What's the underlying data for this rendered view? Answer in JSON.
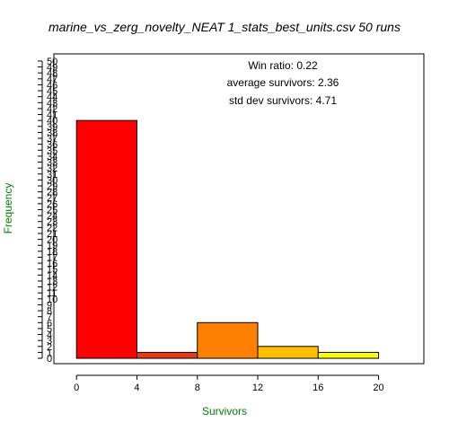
{
  "chart_data": {
    "type": "bar",
    "title": "marine_vs_zerg_novelty_NEAT 1_stats_best_units.csv 50 runs",
    "xlabel": "Survivors",
    "ylabel": "Frequency",
    "bins": [
      {
        "from": 0,
        "to": 4,
        "value": 40,
        "color": "#FF0000"
      },
      {
        "from": 4,
        "to": 8,
        "value": 1,
        "color": "#E83A10"
      },
      {
        "from": 8,
        "to": 12,
        "value": 6,
        "color": "#FF8000"
      },
      {
        "from": 12,
        "to": 16,
        "value": 2,
        "color": "#FFBF00"
      },
      {
        "from": 16,
        "to": 20,
        "value": 1,
        "color": "#FFFF00"
      }
    ],
    "xticks": [
      0,
      4,
      8,
      12,
      16,
      20
    ],
    "yticks": [
      0,
      1,
      2,
      3,
      4,
      5,
      6,
      7,
      8,
      9,
      10,
      11,
      12,
      13,
      14,
      15,
      16,
      17,
      18,
      19,
      20,
      21,
      22,
      23,
      24,
      25,
      26,
      27,
      28,
      29,
      30,
      31,
      32,
      33,
      34,
      35,
      36,
      37,
      38,
      39,
      40,
      41,
      42,
      43,
      44,
      45,
      46,
      47,
      48,
      49,
      50
    ],
    "xlim": [
      -1.5,
      23
    ],
    "ylim": [
      -0.9,
      51.2
    ],
    "annotations": [
      "Win ratio: 0.22",
      "average survivors: 2.36",
      "std dev survivors: 4.71"
    ],
    "label_color": "#008000",
    "grid": false,
    "legend": "none"
  }
}
